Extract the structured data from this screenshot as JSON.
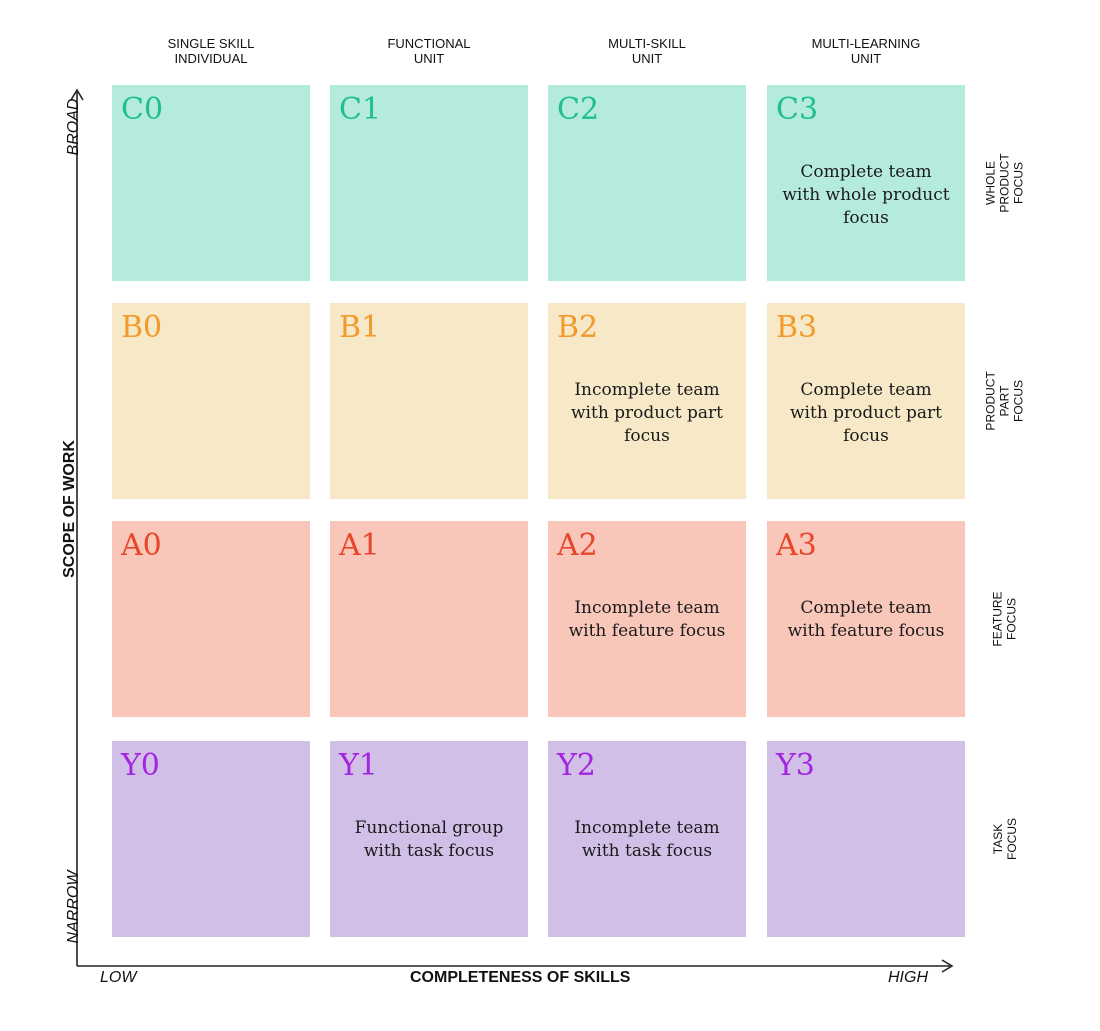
{
  "columns": [
    {
      "label": "SINGLE SKILL\nINDIVIDUAL"
    },
    {
      "label": "FUNCTIONAL\nUNIT"
    },
    {
      "label": "MULTI-SKILL\nUNIT"
    },
    {
      "label": "MULTI-LEARNING\nUNIT"
    }
  ],
  "rows": [
    {
      "label": "WHOLE PRODUCT\nFOCUS",
      "bg": "#b5ebdd",
      "code_color": "#1fbf8f",
      "cells": [
        {
          "code": "C0",
          "text": ""
        },
        {
          "code": "C1",
          "text": ""
        },
        {
          "code": "C2",
          "text": ""
        },
        {
          "code": "C3",
          "text": "Complete team\nwith whole product\nfocus"
        }
      ]
    },
    {
      "label": "PRODUCT PART\nFOCUS",
      "bg": "#f7e8c8",
      "code_color": "#f29a2a",
      "cells": [
        {
          "code": "B0",
          "text": ""
        },
        {
          "code": "B1",
          "text": ""
        },
        {
          "code": "B2",
          "text": "Incomplete team\nwith product part\nfocus"
        },
        {
          "code": "B3",
          "text": "Complete team\nwith product part\nfocus"
        }
      ]
    },
    {
      "label": "FEATURE\nFOCUS",
      "bg": "#f9c6ba",
      "code_color": "#e8452a",
      "cells": [
        {
          "code": "A0",
          "text": ""
        },
        {
          "code": "A1",
          "text": ""
        },
        {
          "code": "A2",
          "text": "Incomplete team\nwith feature focus"
        },
        {
          "code": "A3",
          "text": "Complete team\nwith feature focus"
        }
      ]
    },
    {
      "label": "TASK\nFOCUS",
      "bg": "#d1bfe8",
      "code_color": "#a325e0",
      "cells": [
        {
          "code": "Y0",
          "text": ""
        },
        {
          "code": "Y1",
          "text": "Functional group\nwith task focus"
        },
        {
          "code": "Y2",
          "text": "Incomplete team\nwith task focus"
        },
        {
          "code": "Y3",
          "text": ""
        }
      ]
    }
  ],
  "axes": {
    "x_title": "COMPLETENESS OF SKILLS",
    "x_low": "LOW",
    "x_high": "HIGH",
    "y_title": "SCOPE OF WORK",
    "y_low": "NARROW",
    "y_high": "BROAD",
    "line_color": "#222222"
  }
}
